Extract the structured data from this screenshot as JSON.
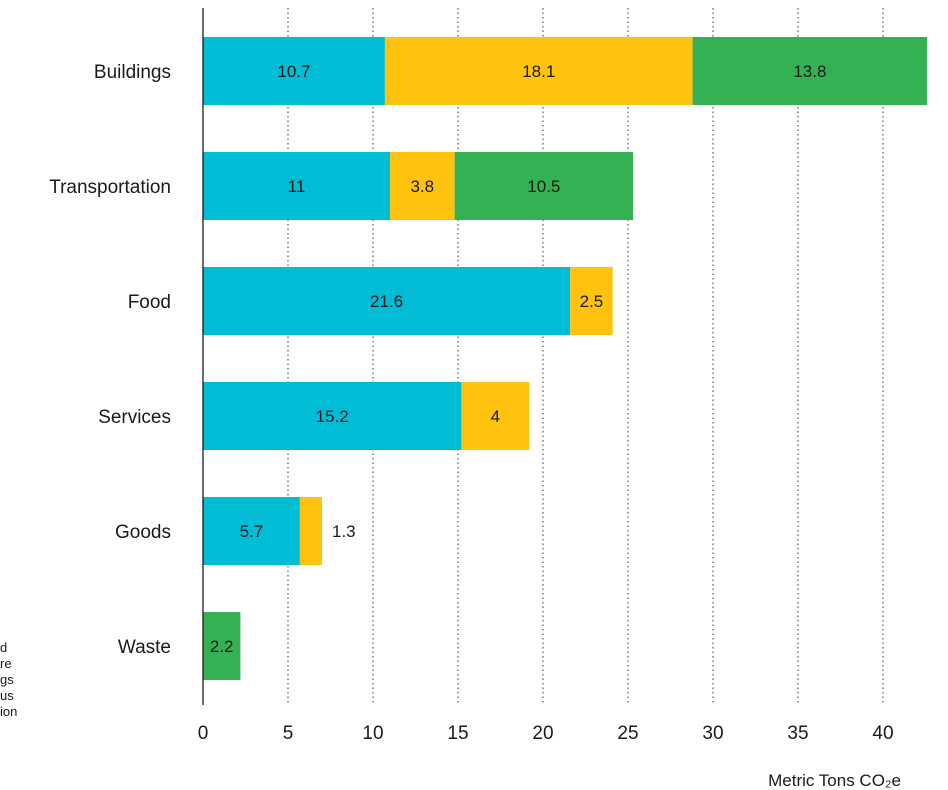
{
  "side_note": {
    "lines": [
      "d",
      "re",
      "gs",
      "us",
      "ion"
    ]
  },
  "chart_data": {
    "type": "bar",
    "orientation": "horizontal",
    "stacked": true,
    "categories": [
      "Buildings",
      "Transportation",
      "Food",
      "Services",
      "Goods",
      "Waste"
    ],
    "series": [
      {
        "color": "#00bcd4",
        "values": [
          10.7,
          11,
          21.6,
          15.2,
          5.7,
          0
        ]
      },
      {
        "color": "#ffc20e",
        "values": [
          18.1,
          3.8,
          2.5,
          4,
          1.3,
          0
        ]
      },
      {
        "color": "#34b152",
        "values": [
          13.8,
          10.5,
          0,
          0,
          0,
          2.2
        ]
      }
    ],
    "xlim": [
      0,
      43
    ],
    "xticks": [
      0,
      5,
      10,
      15,
      20,
      25,
      30,
      35,
      40
    ],
    "xlabel": "Metric Tons CO₂e",
    "ylabel": "",
    "title": "",
    "grid": "vertical dotted"
  }
}
